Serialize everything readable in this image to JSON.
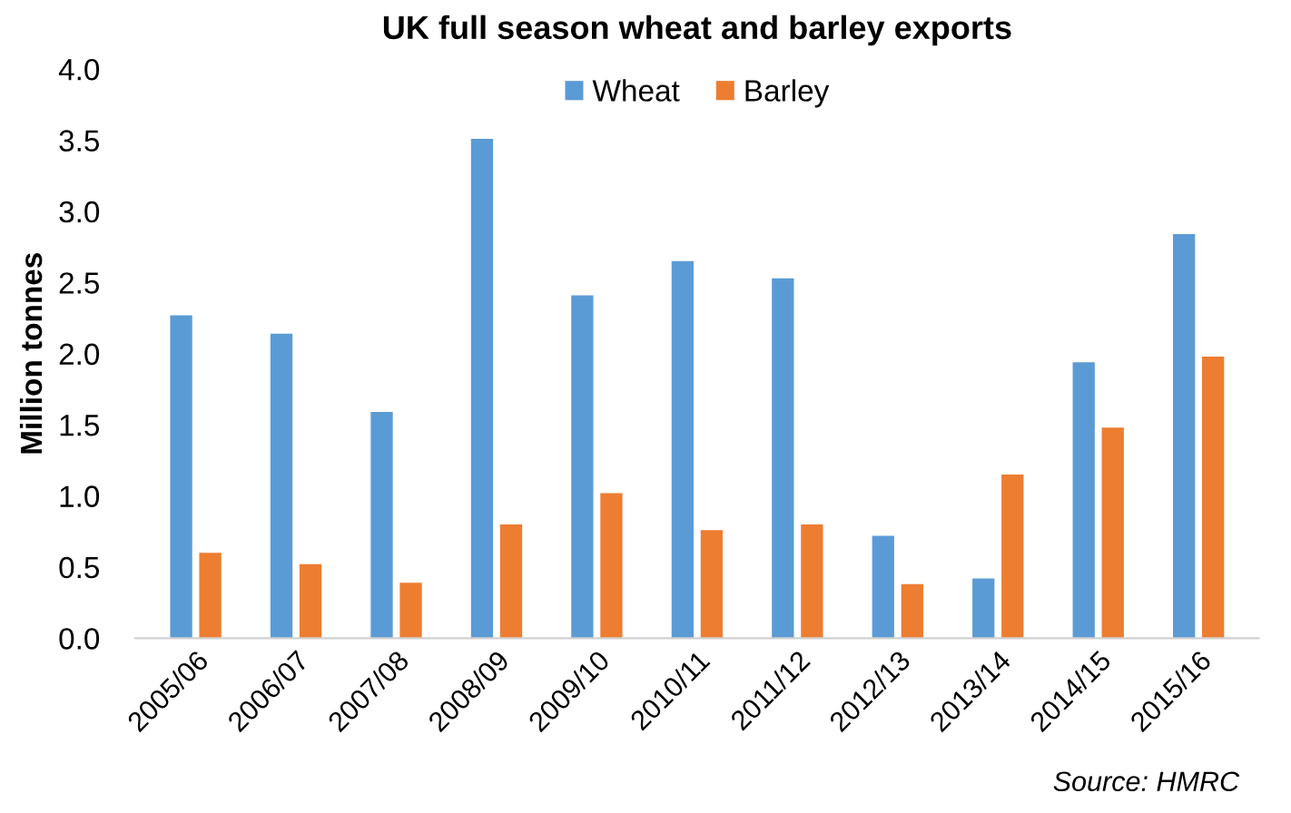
{
  "chart_data": {
    "type": "bar",
    "title": "UK full season wheat and barley exports",
    "ylabel": "Million tonnes",
    "categories": [
      "2005/06",
      "2006/07",
      "2007/08",
      "2008/09",
      "2009/10",
      "2010/11",
      "2011/12",
      "2012/13",
      "2013/14",
      "2014/15",
      "2015/16"
    ],
    "series": [
      {
        "name": "Wheat",
        "color": "#5b9bd5",
        "values": [
          2.27,
          2.14,
          1.59,
          3.51,
          2.41,
          2.65,
          2.53,
          0.72,
          0.42,
          1.94,
          2.84
        ]
      },
      {
        "name": "Barley",
        "color": "#ed7d31",
        "values": [
          0.6,
          0.52,
          0.39,
          0.8,
          1.02,
          0.76,
          0.8,
          0.38,
          1.15,
          1.48,
          1.98
        ]
      }
    ],
    "ylim": [
      0,
      4
    ],
    "yticks": [
      {
        "value": 0,
        "label": "0.0"
      },
      {
        "value": 0.5,
        "label": "0.5"
      },
      {
        "value": 1,
        "label": "1.0"
      },
      {
        "value": 1.5,
        "label": "1.5"
      },
      {
        "value": 2,
        "label": "2.0"
      },
      {
        "value": 2.5,
        "label": "2.5"
      },
      {
        "value": 3,
        "label": "3.0"
      },
      {
        "value": 3.5,
        "label": "3.5"
      },
      {
        "value": 4,
        "label": "4.0"
      }
    ],
    "grid": false,
    "legend": "top",
    "annotations": [
      "Source: HMRC"
    ]
  }
}
